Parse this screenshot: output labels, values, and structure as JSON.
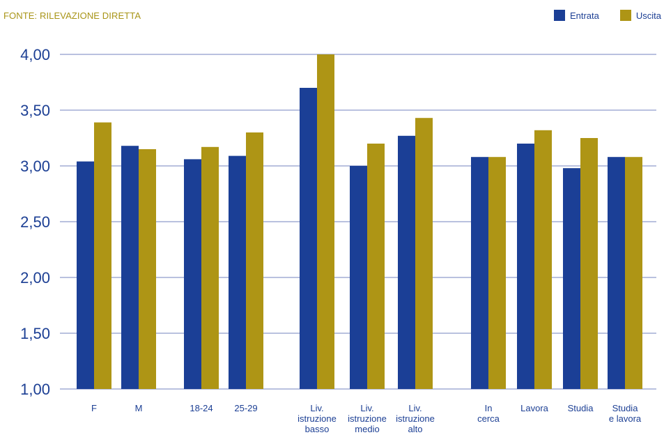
{
  "source": "FONTE: RILEVAZIONE DIRETTA",
  "colors": {
    "entrata": "#1b3f96",
    "uscita": "#ae9515",
    "grid": "#8f9ccc",
    "text": "#1c3f94"
  },
  "chart_data": {
    "type": "bar",
    "ylim": [
      1.0,
      4.0
    ],
    "yticks": [
      "1,00",
      "1,50",
      "2,00",
      "2,50",
      "3,00",
      "3,50",
      "4,00"
    ],
    "legend_position": "top-right",
    "categories": [
      [
        "F"
      ],
      [
        "M"
      ],
      [
        "18-24"
      ],
      [
        "25-29"
      ],
      [
        "Liv.",
        "istruzione",
        "basso"
      ],
      [
        "Liv.",
        "istruzione",
        "medio"
      ],
      [
        "Liv.",
        "istruzione",
        "alto"
      ],
      [
        "In",
        "cerca"
      ],
      [
        "Lavora"
      ],
      [
        "Studia"
      ],
      [
        "Studia",
        "e lavora"
      ]
    ],
    "series": [
      {
        "name": "Entrata",
        "values": [
          3.04,
          3.18,
          3.06,
          3.09,
          3.7,
          3.0,
          3.27,
          3.08,
          3.2,
          2.98,
          3.08
        ]
      },
      {
        "name": "Uscita",
        "values": [
          3.39,
          3.15,
          3.17,
          3.3,
          4.0,
          3.2,
          3.43,
          3.08,
          3.32,
          3.25,
          3.08
        ]
      }
    ]
  }
}
